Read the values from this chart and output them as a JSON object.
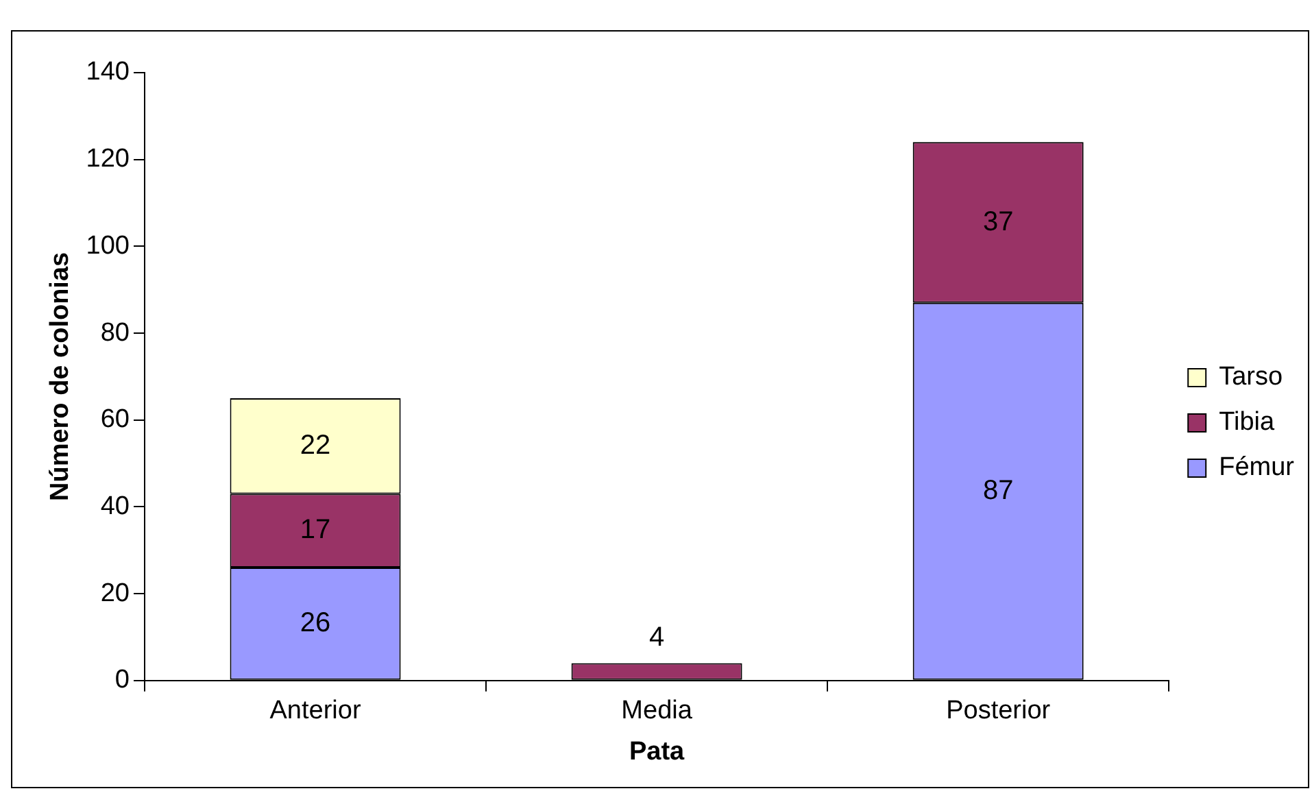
{
  "chart_data": {
    "type": "bar",
    "stacked": true,
    "xlabel": "Pata",
    "ylabel": "Número de colonias",
    "categories": [
      "Anterior",
      "Media",
      "Posterior"
    ],
    "series": [
      {
        "name": "Fémur",
        "color": "#9999ff",
        "values": [
          26,
          null,
          87
        ]
      },
      {
        "name": "Tibia",
        "color": "#993366",
        "values": [
          17,
          4,
          37
        ]
      },
      {
        "name": "Tarso",
        "color": "#ffffcc",
        "values": [
          22,
          null,
          null
        ]
      }
    ],
    "ylim": [
      0,
      140
    ],
    "yticks": [
      0,
      20,
      40,
      60,
      80,
      100,
      120,
      140
    ],
    "grid": false,
    "legend": "right",
    "data_labels": true
  }
}
